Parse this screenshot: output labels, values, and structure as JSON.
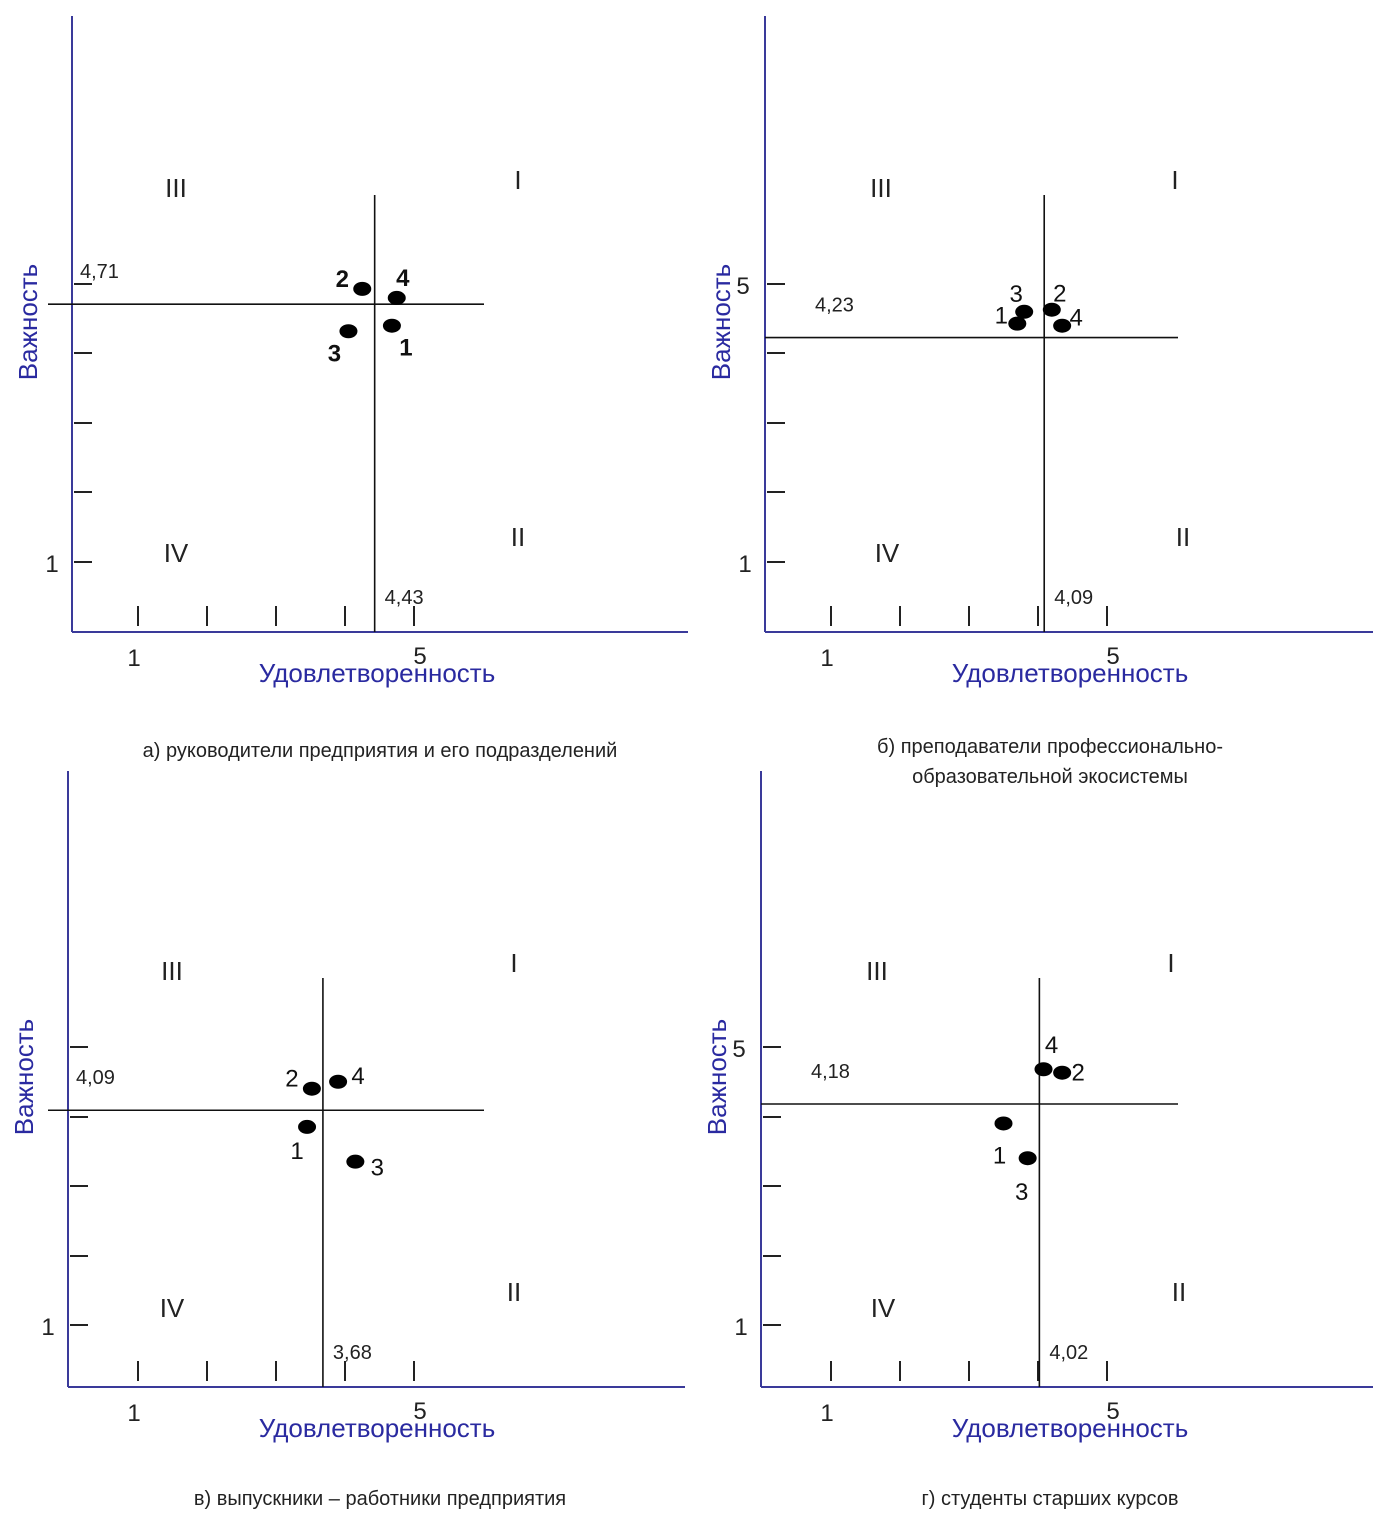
{
  "colors": {
    "axis": "#3a3a9a",
    "label": "#2a2aa0",
    "line": "#111111",
    "point": "#000000"
  },
  "chart_data": [
    {
      "type": "scatter",
      "panel": "a",
      "xlabel": "Удовлетворенность",
      "ylabel": "Важность",
      "x_tick_labels": [
        "1",
        "5"
      ],
      "y_tick_labels": [
        "1"
      ],
      "quadrants": [
        "I",
        "II",
        "III",
        "IV"
      ],
      "x_mean": 4.43,
      "x_mean_label": "4,43",
      "y_mean": 4.71,
      "y_mean_label": "4,71",
      "xlim": [
        0,
        9.8
      ],
      "ylim": [
        0,
        8.8
      ],
      "points": [
        {
          "label": "1",
          "x": 4.68,
          "y": 4.4
        },
        {
          "label": "2",
          "x": 4.25,
          "y": 4.93
        },
        {
          "label": "3",
          "x": 4.05,
          "y": 4.32
        },
        {
          "label": "4",
          "x": 4.75,
          "y": 4.8
        }
      ],
      "caption": "а) руководители предприятия и его подразделений"
    },
    {
      "type": "scatter",
      "panel": "б",
      "xlabel": "Удовлетворенность",
      "ylabel": "Важность",
      "x_tick_labels": [
        "1",
        "5"
      ],
      "y_tick_labels": [
        "1",
        "5"
      ],
      "quadrants": [
        "I",
        "II",
        "III",
        "IV"
      ],
      "x_mean": 4.09,
      "x_mean_label": "4,09",
      "y_mean": 4.23,
      "y_mean_label": "4,23",
      "xlim": [
        0,
        9.6
      ],
      "ylim": [
        0,
        8.8
      ],
      "points": [
        {
          "label": "1",
          "x": 3.7,
          "y": 4.43
        },
        {
          "label": "2",
          "x": 4.2,
          "y": 4.63
        },
        {
          "label": "3",
          "x": 3.8,
          "y": 4.6
        },
        {
          "label": "4",
          "x": 4.35,
          "y": 4.4
        }
      ],
      "caption": [
        "б) преподаватели профессионально-",
        "образовательной экосистемы"
      ]
    },
    {
      "type": "scatter",
      "panel": "в",
      "xlabel": "Удовлетворенность",
      "ylabel": "Важность",
      "x_tick_labels": [
        "1",
        "5"
      ],
      "y_tick_labels": [
        "1"
      ],
      "quadrants": [
        "I",
        "II",
        "III",
        "IV"
      ],
      "x_mean": 3.68,
      "x_mean_label": "3,68",
      "y_mean": 4.09,
      "y_mean_label": "4,09",
      "xlim": [
        0,
        8.9
      ],
      "ylim": [
        0,
        8.8
      ],
      "points": [
        {
          "label": "1",
          "x": 3.45,
          "y": 3.85
        },
        {
          "label": "2",
          "x": 3.52,
          "y": 4.4
        },
        {
          "label": "3",
          "x": 4.15,
          "y": 3.35
        },
        {
          "label": "4",
          "x": 3.9,
          "y": 4.5
        }
      ],
      "caption": "в) выпускники – работники предприятия"
    },
    {
      "type": "scatter",
      "panel": "г",
      "xlabel": "Удовлетворенность",
      "ylabel": "Важность",
      "x_tick_labels": [
        "1",
        "5"
      ],
      "y_tick_labels": [
        "1",
        "5"
      ],
      "quadrants": [
        "I",
        "II",
        "III",
        "IV"
      ],
      "x_mean": 4.02,
      "x_mean_label": "4,02",
      "y_mean": 4.18,
      "y_mean_label": "4,18",
      "xlim": [
        0,
        9.8
      ],
      "ylim": [
        0,
        8.8
      ],
      "points": [
        {
          "label": "1",
          "x": 3.5,
          "y": 3.9
        },
        {
          "label": "2",
          "x": 4.35,
          "y": 4.63
        },
        {
          "label": "3",
          "x": 3.85,
          "y": 3.4
        },
        {
          "label": "4",
          "x": 4.08,
          "y": 4.68
        }
      ],
      "caption": "г) студенты старших курсов"
    }
  ]
}
